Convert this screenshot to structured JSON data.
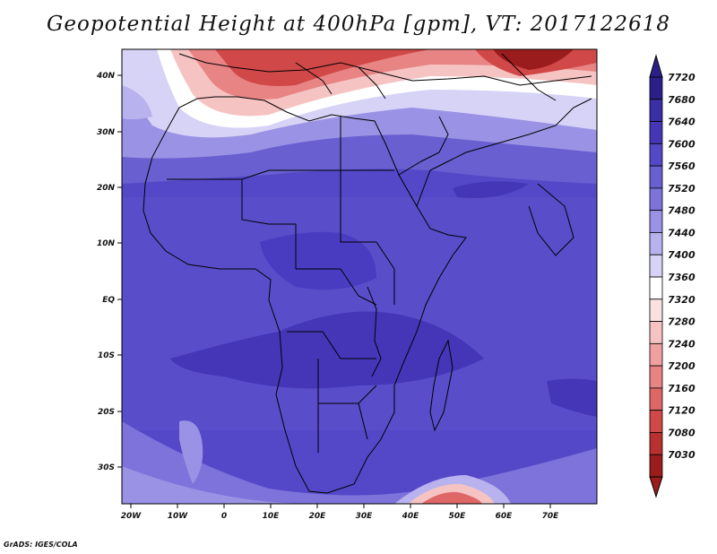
{
  "title": "Geopotential Height at 400hPa [gpm], VT: 2017122618",
  "credit": "GrADS: IGES/COLA",
  "x_ticks": [
    "20W",
    "10W",
    "0",
    "10E",
    "20E",
    "30E",
    "40E",
    "50E",
    "60E",
    "70E"
  ],
  "y_ticks": [
    "40N",
    "30N",
    "20N",
    "10N",
    "EQ",
    "10S",
    "20S",
    "30S"
  ],
  "colorbar": {
    "levels": [
      "7720",
      "7680",
      "7640",
      "7600",
      "7560",
      "7520",
      "7480",
      "7440",
      "7400",
      "7360",
      "7320",
      "7280",
      "7240",
      "7200",
      "7160",
      "7120",
      "7080",
      "7030"
    ],
    "colors": [
      "#2c1f8a",
      "#3a2fa6",
      "#4536b8",
      "#5548c8",
      "#6a5fd0",
      "#7d73da",
      "#9a92e4",
      "#b8b2ee",
      "#d6d3f6",
      "#ffffff",
      "#fbe1e1",
      "#f6c3c3",
      "#f0a0a0",
      "#e88484",
      "#de6666",
      "#d04848",
      "#b83030",
      "#9a1c1c"
    ]
  }
}
